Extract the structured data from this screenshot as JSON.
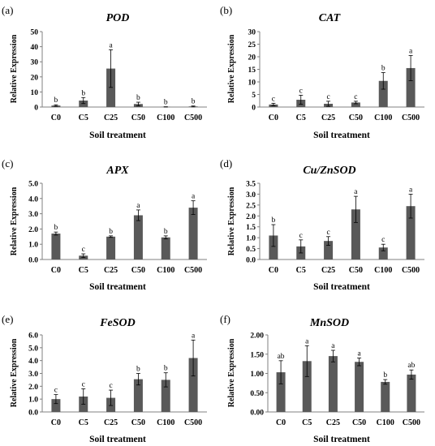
{
  "panels": [
    {
      "label": "(a)",
      "chart_data": {
        "type": "bar",
        "title": "POD",
        "xlabel": "Soil treatment",
        "ylabel": "Relative Expression",
        "categories": [
          "C0",
          "C5",
          "C25",
          "C50",
          "C100",
          "C500"
        ],
        "values": [
          1,
          4.3,
          25.5,
          2,
          0.1,
          0.4
        ],
        "errors": [
          0.5,
          2,
          12.5,
          1.2,
          0.1,
          0.3
        ],
        "significance": [
          "b",
          "b",
          "a",
          "b",
          "b",
          "b"
        ],
        "ylim": [
          0,
          50
        ],
        "yticks": [
          "0",
          "10",
          "20",
          "30",
          "40",
          "50"
        ]
      }
    },
    {
      "label": "(b)",
      "chart_data": {
        "type": "bar",
        "title": "CAT",
        "xlabel": "Soil treatment",
        "ylabel": "Relative Expression",
        "categories": [
          "C0",
          "C5",
          "C25",
          "C50",
          "C100",
          "C500"
        ],
        "values": [
          1,
          2.9,
          1.3,
          1.8,
          10.4,
          15.5
        ],
        "errors": [
          0.5,
          1.8,
          1,
          0.5,
          3.3,
          5
        ],
        "significance": [
          "c",
          "c",
          "c",
          "c",
          "b",
          "a"
        ],
        "ylim": [
          0,
          30
        ],
        "yticks": [
          "0",
          "5",
          "10",
          "15",
          "20",
          "25",
          "30"
        ]
      }
    },
    {
      "label": "(c)",
      "chart_data": {
        "type": "bar",
        "title": "APX",
        "xlabel": "Soil treatment",
        "ylabel": "Relative Expression",
        "categories": [
          "C0",
          "C5",
          "C25",
          "C50",
          "C100",
          "C500"
        ],
        "values": [
          1.7,
          0.25,
          1.5,
          2.9,
          1.45,
          3.4
        ],
        "errors": [
          0.1,
          0.12,
          0.05,
          0.35,
          0.1,
          0.45
        ],
        "significance": [
          "b",
          "c",
          "b",
          "a",
          "b",
          "a"
        ],
        "ylim": [
          0,
          5
        ],
        "yticks": [
          "0.0",
          "1.0",
          "2.0",
          "3.0",
          "4.0",
          "5.0"
        ]
      }
    },
    {
      "label": "(d)",
      "chart_data": {
        "type": "bar",
        "title": "Cu/ZnSOD",
        "xlabel": "Soil treatment",
        "ylabel": "Relative Expression",
        "categories": [
          "C0",
          "C5",
          "C25",
          "C50",
          "C100",
          "C500"
        ],
        "values": [
          1.1,
          0.6,
          0.85,
          2.3,
          0.55,
          2.45
        ],
        "errors": [
          0.5,
          0.3,
          0.2,
          0.6,
          0.15,
          0.55
        ],
        "significance": [
          "b",
          "c",
          "c",
          "a",
          "c",
          "a"
        ],
        "ylim": [
          0,
          3.5
        ],
        "yticks": [
          "0.0",
          "0.5",
          "1.0",
          "1.5",
          "2.0",
          "2.5",
          "3.0",
          "3.5"
        ]
      }
    },
    {
      "label": "(e)",
      "chart_data": {
        "type": "bar",
        "title": "FeSOD",
        "xlabel": "Soil treatment",
        "ylabel": "Relative Expression",
        "categories": [
          "C0",
          "C5",
          "C25",
          "C50",
          "C100",
          "C500"
        ],
        "values": [
          1,
          1.2,
          1.1,
          2.55,
          2.5,
          4.2
        ],
        "errors": [
          0.35,
          0.6,
          0.6,
          0.45,
          0.55,
          1.4
        ],
        "significance": [
          "c",
          "c",
          "c",
          "b",
          "b",
          "a"
        ],
        "ylim": [
          0,
          6
        ],
        "yticks": [
          "0.0",
          "1.0",
          "2.0",
          "3.0",
          "4.0",
          "5.0",
          "6.0"
        ]
      }
    },
    {
      "label": "(f)",
      "chart_data": {
        "type": "bar",
        "title": "MnSOD",
        "xlabel": "Soil treatment",
        "ylabel": "Relative Expression",
        "categories": [
          "C0",
          "C5",
          "C25",
          "C50",
          "C100",
          "C500"
        ],
        "values": [
          1.03,
          1.32,
          1.45,
          1.3,
          0.78,
          0.97
        ],
        "errors": [
          0.3,
          0.4,
          0.15,
          0.1,
          0.06,
          0.12
        ],
        "significance": [
          "ab",
          "a",
          "a",
          "a",
          "b",
          "ab"
        ],
        "ylim": [
          0,
          2
        ],
        "yticks": [
          "0.00",
          "0.50",
          "1.00",
          "1.50",
          "2.00"
        ]
      }
    }
  ],
  "colors": {
    "bar": "#595959",
    "axis": "#808080",
    "text": "#000000"
  }
}
